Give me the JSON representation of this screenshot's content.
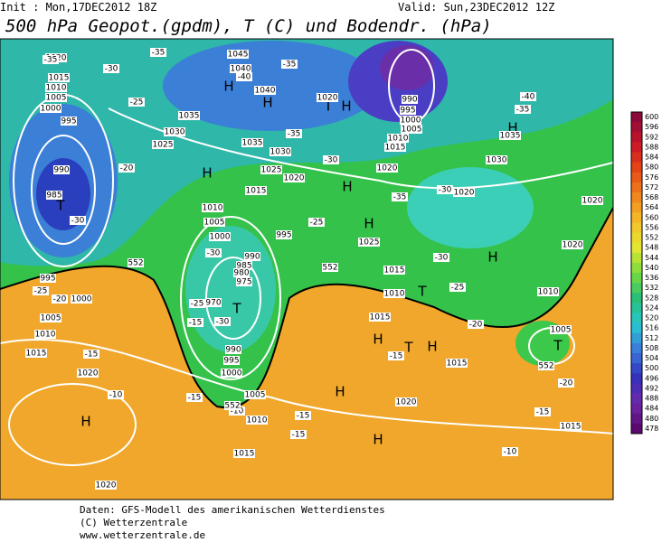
{
  "header": {
    "init": "Init : Mon,17DEC2012 18Z",
    "valid": "Valid: Sun,23DEC2012 12Z",
    "title": "500 hPa Geopot.(gpdm), T (C) und Bodendr. (hPa)"
  },
  "map": {
    "labels": [
      "H",
      "H",
      "H",
      "H",
      "H",
      "H",
      "H",
      "H",
      "H",
      "H",
      "H",
      "H",
      "T",
      "T",
      "T",
      "T",
      "T",
      "T",
      "H",
      "1020",
      "1015",
      "1010",
      "1005",
      "1000",
      "995",
      "990",
      "985",
      "995",
      "1000",
      "1005",
      "1010",
      "1015",
      "1020",
      "1020",
      "1045",
      "1040",
      "1040",
      "1035",
      "1030",
      "1025",
      "1035",
      "1030",
      "1025",
      "1020",
      "1015",
      "1010",
      "1005",
      "1000",
      "995",
      "990",
      "985",
      "980",
      "975",
      "970",
      "990",
      "995",
      "1000",
      "1005",
      "1010",
      "1015",
      "990",
      "995",
      "1000",
      "1005",
      "1010",
      "1015",
      "1020",
      "1020",
      "1025",
      "1015",
      "1010",
      "1015",
      "1005",
      "1010",
      "1015",
      "1020",
      "1020",
      "1015",
      "1020",
      "1030",
      "1035",
      "1020",
      "-35",
      "-30",
      "-25",
      "-20",
      "-30",
      "-25",
      "-20",
      "-15",
      "-10",
      "-35",
      "-40",
      "-30",
      "-25",
      "-30",
      "-15",
      "-15",
      "-10",
      "-15",
      "-15",
      "-10",
      "-15",
      "-20",
      "-20",
      "-25",
      "-30",
      "-35",
      "-30",
      "-25",
      "-30",
      "-35",
      "-35",
      "-40",
      "-35",
      "-15",
      "552",
      "552",
      "552",
      "552"
    ]
  },
  "legend": {
    "scale": [
      600,
      596,
      592,
      588,
      584,
      580,
      576,
      572,
      568,
      564,
      560,
      556,
      552,
      548,
      544,
      540,
      536,
      532,
      528,
      524,
      520,
      516,
      512,
      508,
      504,
      500,
      496,
      492,
      488,
      484,
      480,
      478
    ]
  },
  "footer": {
    "lines": [
      "Daten: GFS-Modell des amerikanischen Wetterdienstes",
      "(C) Wetterzentrale",
      "www.wetterzentrale.de"
    ]
  }
}
